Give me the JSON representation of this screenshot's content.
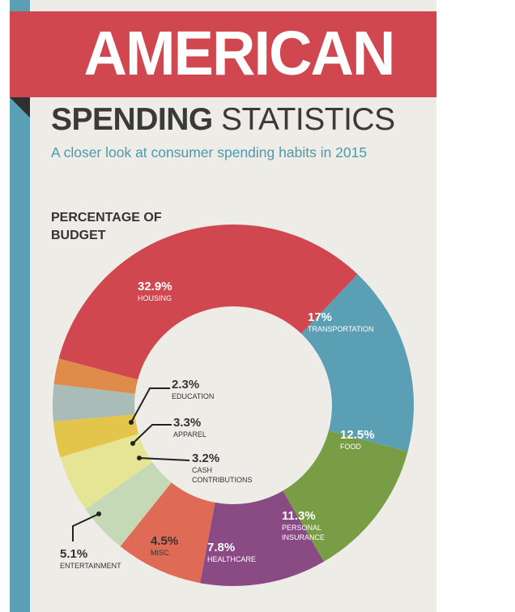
{
  "header": {
    "title_main": "AMERICAN",
    "title_sub_bold": "SPENDING",
    "title_sub_light": "STATISTICS",
    "tagline": "A closer look at consumer spending habits in 2015"
  },
  "colors": {
    "banner": "#d1474f",
    "stripe": "#5b9fb5",
    "background": "#eeece7"
  },
  "chart_data": {
    "type": "pie",
    "title": "PERCENTAGE OF BUDGET",
    "subtype": "donut",
    "slices": [
      {
        "label": "HOUSING",
        "value": 32.9,
        "display": "32.9%",
        "color": "#d1474f"
      },
      {
        "label": "TRANSPORTATION",
        "value": 17,
        "display": "17%",
        "color": "#5b9fb5"
      },
      {
        "label": "FOOD",
        "value": 12.5,
        "display": "12.5%",
        "color": "#789d44"
      },
      {
        "label": "PERSONAL INSURANCE",
        "value": 11.3,
        "display": "11.3%",
        "color": "#8a4a83"
      },
      {
        "label": "HEALTHCARE",
        "value": 7.8,
        "display": "7.8%",
        "color": "#df6a55"
      },
      {
        "label": "MISC.",
        "value": 4.5,
        "display": "4.5%",
        "color": "#c5d9b6"
      },
      {
        "label": "ENTERTAINMENT",
        "value": 5.1,
        "display": "5.1%",
        "color": "#e6e596"
      },
      {
        "label": "CASH CONTRIBUTIONS",
        "value": 3.2,
        "display": "3.2%",
        "color": "#e3c54b"
      },
      {
        "label": "APPAREL",
        "value": 3.3,
        "display": "3.3%",
        "color": "#a9bcb8"
      },
      {
        "label": "EDUCATION",
        "value": 2.3,
        "display": "2.3%",
        "color": "#df8b4a"
      }
    ]
  }
}
